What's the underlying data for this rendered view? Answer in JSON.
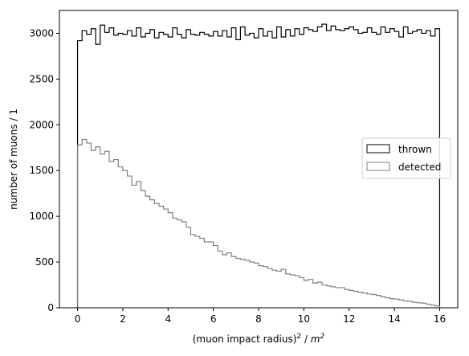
{
  "chart_data": {
    "type": "histogram",
    "xlabel_main": "(muon impact radius)",
    "xlabel_sup1": "2",
    "xlabel_mid": " / ",
    "xlabel_unit": "m",
    "xlabel_sup2": "2",
    "ylabel": "number of muons / 1",
    "xlim": [
      -0.8,
      16.8
    ],
    "ylim": [
      0,
      3250
    ],
    "xticks": [
      0,
      2,
      4,
      6,
      8,
      10,
      12,
      14,
      16
    ],
    "yticks": [
      0,
      500,
      1000,
      1500,
      2000,
      2500,
      3000
    ],
    "bin_edges_range": [
      0,
      16
    ],
    "bin_count": 80,
    "legend_position": "center right",
    "series": [
      {
        "name": "thrown",
        "color": "#000000",
        "values": [
          2920,
          3030,
          2990,
          3050,
          2880,
          3090,
          3010,
          3060,
          2980,
          3000,
          2990,
          3030,
          2970,
          3060,
          2960,
          3000,
          3040,
          2950,
          3010,
          2990,
          2960,
          3060,
          2990,
          2950,
          3040,
          2990,
          2980,
          3010,
          2990,
          2970,
          3020,
          2970,
          3030,
          2960,
          3060,
          2930,
          3070,
          2980,
          3000,
          2950,
          3050,
          2970,
          3020,
          2950,
          3070,
          2960,
          3040,
          2970,
          3050,
          2990,
          3060,
          3040,
          3020,
          3070,
          3100,
          3030,
          3080,
          3040,
          3030,
          3050,
          3070,
          3040,
          3000,
          3010,
          3060,
          3010,
          2990,
          3070,
          3010,
          3050,
          3020,
          2960,
          3070,
          3000,
          3020,
          3040,
          3000,
          3030,
          2970,
          3050
        ]
      },
      {
        "name": "detected",
        "color": "#808080",
        "values": [
          1780,
          1840,
          1800,
          1720,
          1760,
          1680,
          1710,
          1600,
          1620,
          1540,
          1500,
          1440,
          1340,
          1380,
          1280,
          1220,
          1180,
          1140,
          1110,
          1080,
          1040,
          980,
          960,
          940,
          880,
          800,
          780,
          760,
          720,
          720,
          680,
          620,
          580,
          600,
          560,
          540,
          530,
          520,
          500,
          490,
          460,
          450,
          430,
          410,
          400,
          420,
          370,
          360,
          350,
          330,
          300,
          310,
          270,
          280,
          250,
          240,
          230,
          220,
          220,
          200,
          190,
          180,
          170,
          160,
          150,
          145,
          135,
          120,
          110,
          100,
          95,
          85,
          75,
          70,
          60,
          55,
          50,
          40,
          30,
          20
        ]
      }
    ]
  }
}
